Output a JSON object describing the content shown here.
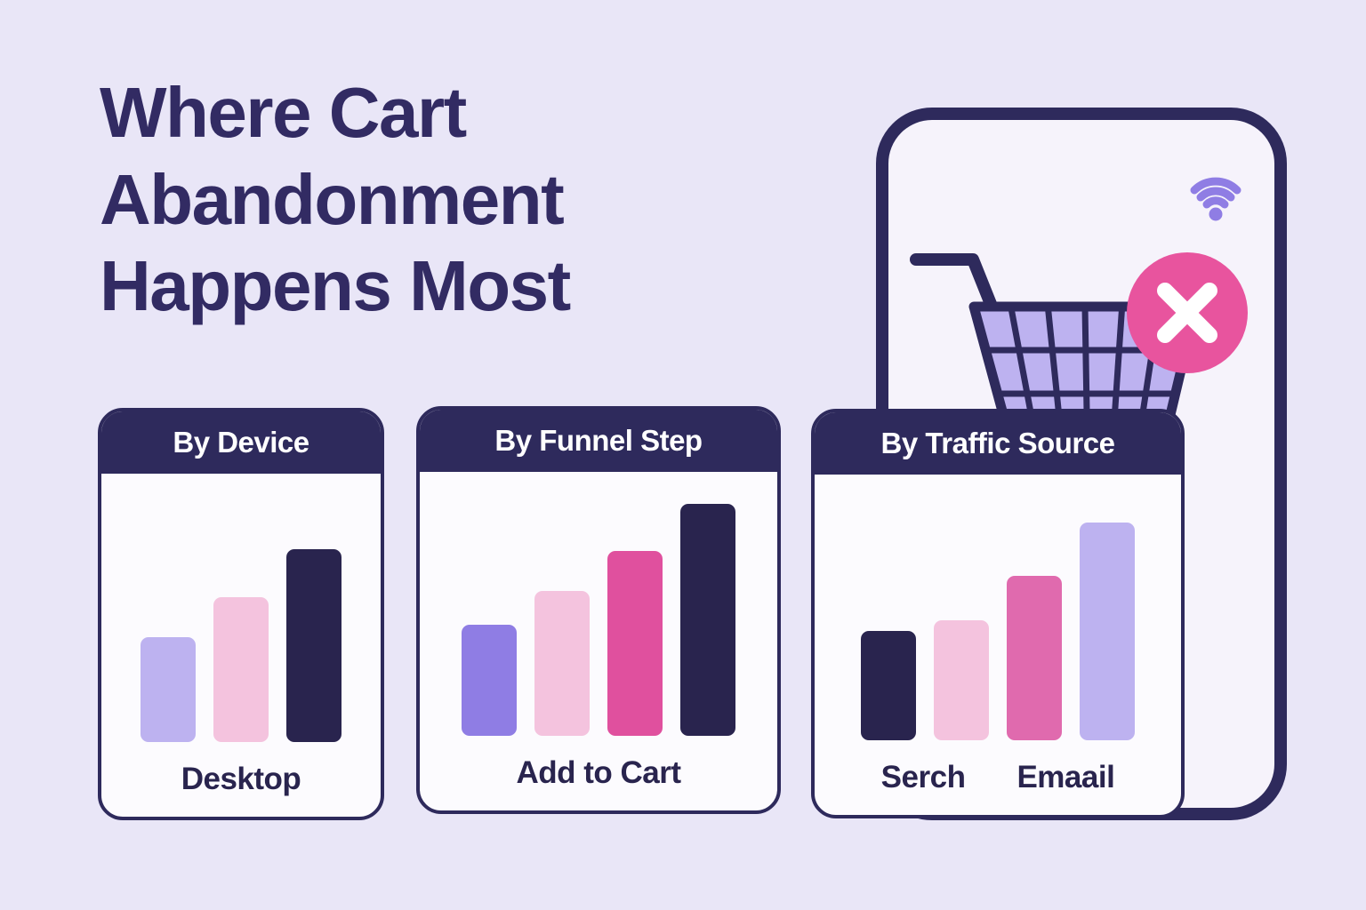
{
  "title": {
    "line1": "Where Cart",
    "line2": "Abandonment",
    "line3": "Happens Most"
  },
  "colors": {
    "background": "#e9e6f7",
    "ink": "#322b63",
    "navy": "#2e2a5c",
    "bar_navy": "#29244e",
    "card_bg": "#fcfbfe",
    "phone_bg": "#f6f3fb",
    "lavender": "#bdb2f0",
    "violet": "#8f7de4",
    "pink_light": "#f4c3de",
    "magenta": "#e0509e",
    "pink_mid": "#e06aae",
    "badge_pink": "#e8549e",
    "white": "#ffffff"
  },
  "illustration": {
    "wifi_icon": "wifi-signal",
    "cart_icon": "abandoned-shopping-cart",
    "x_badge_icon": "cancel-cross"
  },
  "chart_data": [
    {
      "type": "bar",
      "title": "By Device",
      "values": [
        39,
        54,
        72
      ],
      "colors": [
        "#bdb2f0",
        "#f4c3de",
        "#29244e"
      ],
      "captions": [
        "Desktop"
      ],
      "ylim": [
        0,
        100
      ],
      "grid": false,
      "legend": false,
      "value_scale": "relative-height-percent"
    },
    {
      "type": "bar",
      "title": "By Funnel Step",
      "values": [
        42,
        55,
        70,
        88
      ],
      "colors": [
        "#8f7de4",
        "#f4c3de",
        "#e0509e",
        "#29244e"
      ],
      "captions": [
        "Add to Cart"
      ],
      "ylim": [
        0,
        100
      ],
      "grid": false,
      "legend": false,
      "value_scale": "relative-height-percent"
    },
    {
      "type": "bar",
      "title": "By Traffic Source",
      "values": [
        41,
        45,
        62,
        82
      ],
      "colors": [
        "#29244e",
        "#f4c3de",
        "#e06aae",
        "#bdb2f0"
      ],
      "captions": [
        "Serch",
        "Emaail"
      ],
      "ylim": [
        0,
        100
      ],
      "grid": false,
      "legend": false,
      "value_scale": "relative-height-percent"
    }
  ]
}
